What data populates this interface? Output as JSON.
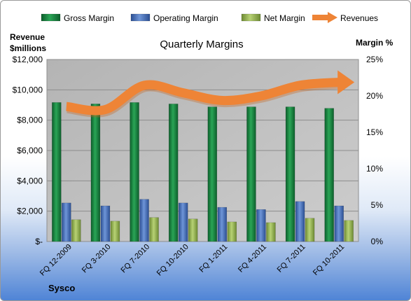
{
  "chart_data": {
    "type": "bar",
    "title": "Quarterly Margins",
    "company": "Sysco",
    "y_left_label_line1": "Revenue",
    "y_left_label_line2": "$millions",
    "y_right_label": "Margin %",
    "y_left_ticks": [
      "$-",
      "$2,000",
      "$4,000",
      "$6,000",
      "$8,000",
      "$10,000",
      "$12,000"
    ],
    "y_right_ticks": [
      "0%",
      "5%",
      "10%",
      "15%",
      "20%",
      "25%"
    ],
    "ylim_left": [
      0,
      12000
    ],
    "ylim_right": [
      0,
      25
    ],
    "grid": true,
    "legend_position": "top",
    "categories": [
      "FQ 12-2009",
      "FQ 3-2010",
      "FQ 7-2010",
      "FQ 10-2010",
      "FQ 1-2011",
      "FQ 4-2011",
      "FQ 7-2011",
      "FQ 10-2011"
    ],
    "series": [
      {
        "name": "Gross Margin",
        "kind": "bar",
        "axis": "right",
        "color": "#1e8a45",
        "values": [
          19.1,
          18.9,
          19.1,
          18.9,
          18.5,
          18.5,
          18.5,
          18.3
        ]
      },
      {
        "name": "Operating Margin",
        "kind": "bar",
        "axis": "right",
        "color": "#4a74be",
        "values": [
          5.3,
          4.9,
          5.8,
          5.3,
          4.7,
          4.4,
          5.5,
          4.9
        ]
      },
      {
        "name": "Net Margin",
        "kind": "bar",
        "axis": "right",
        "color": "#9bbb59",
        "values": [
          3.0,
          2.8,
          3.3,
          3.1,
          2.7,
          2.6,
          3.2,
          2.9
        ]
      },
      {
        "name": "Revenues",
        "kind": "arrow",
        "axis": "left",
        "color": "#ee8436",
        "values": [
          8900,
          8700,
          10300,
          9800,
          9300,
          9600,
          10300,
          10500
        ]
      }
    ]
  }
}
